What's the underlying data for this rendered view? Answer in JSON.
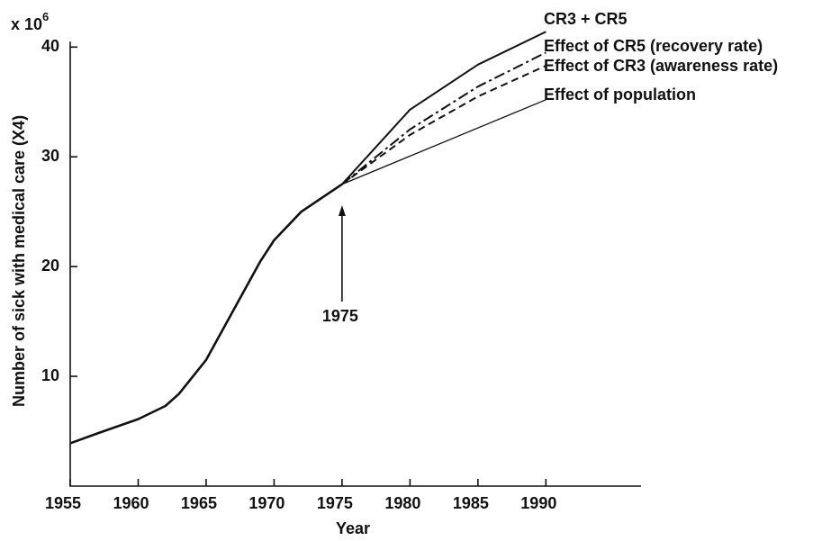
{
  "chart_data": {
    "type": "line",
    "y_label": "Number of sick with medical care (X4)",
    "x_label": "Year",
    "y_unit": {
      "base": "x 10",
      "exponent": "6"
    },
    "xlim": [
      1955,
      1997
    ],
    "ylim": [
      0,
      41.5
    ],
    "xticks": [
      1955,
      1960,
      1965,
      1970,
      1975,
      1980,
      1985,
      1990
    ],
    "yticks": [
      10,
      20,
      30,
      40
    ],
    "color": "#111111",
    "series": [
      {
        "x": [
          1955,
          1957,
          1960,
          1962,
          1963,
          1965,
          1967,
          1969,
          1970,
          1972,
          1975
        ],
        "values": [
          3.9,
          4.8,
          6.1,
          7.3,
          8.4,
          11.5,
          16,
          20.5,
          22.4,
          25,
          27.5
        ],
        "style": "solid",
        "line_width": 2.6
      },
      {
        "name": "CR3 + CR5",
        "x": [
          1975,
          1980,
          1985,
          1990
        ],
        "values": [
          27.5,
          34.3,
          38.4,
          41.4
        ],
        "style": "solid",
        "line_width": 2
      },
      {
        "name": "Effect of CR5 (recovery rate)",
        "x": [
          1975,
          1980,
          1985,
          1990
        ],
        "values": [
          27.5,
          32.5,
          36.4,
          39.5
        ],
        "style": "dashdot",
        "line_width": 2
      },
      {
        "name": "Effect of CR3 (awareness rate)",
        "x": [
          1975,
          1980,
          1985,
          1990
        ],
        "values": [
          27.5,
          32,
          35.5,
          38.3
        ],
        "style": "dashed",
        "line_width": 2
      },
      {
        "name": "Effect of population",
        "x": [
          1975,
          1990
        ],
        "values": [
          27.5,
          35.2
        ],
        "style": "solid",
        "line_width": 1.3
      }
    ],
    "annotation": {
      "text": "1975",
      "x": 1975
    }
  }
}
